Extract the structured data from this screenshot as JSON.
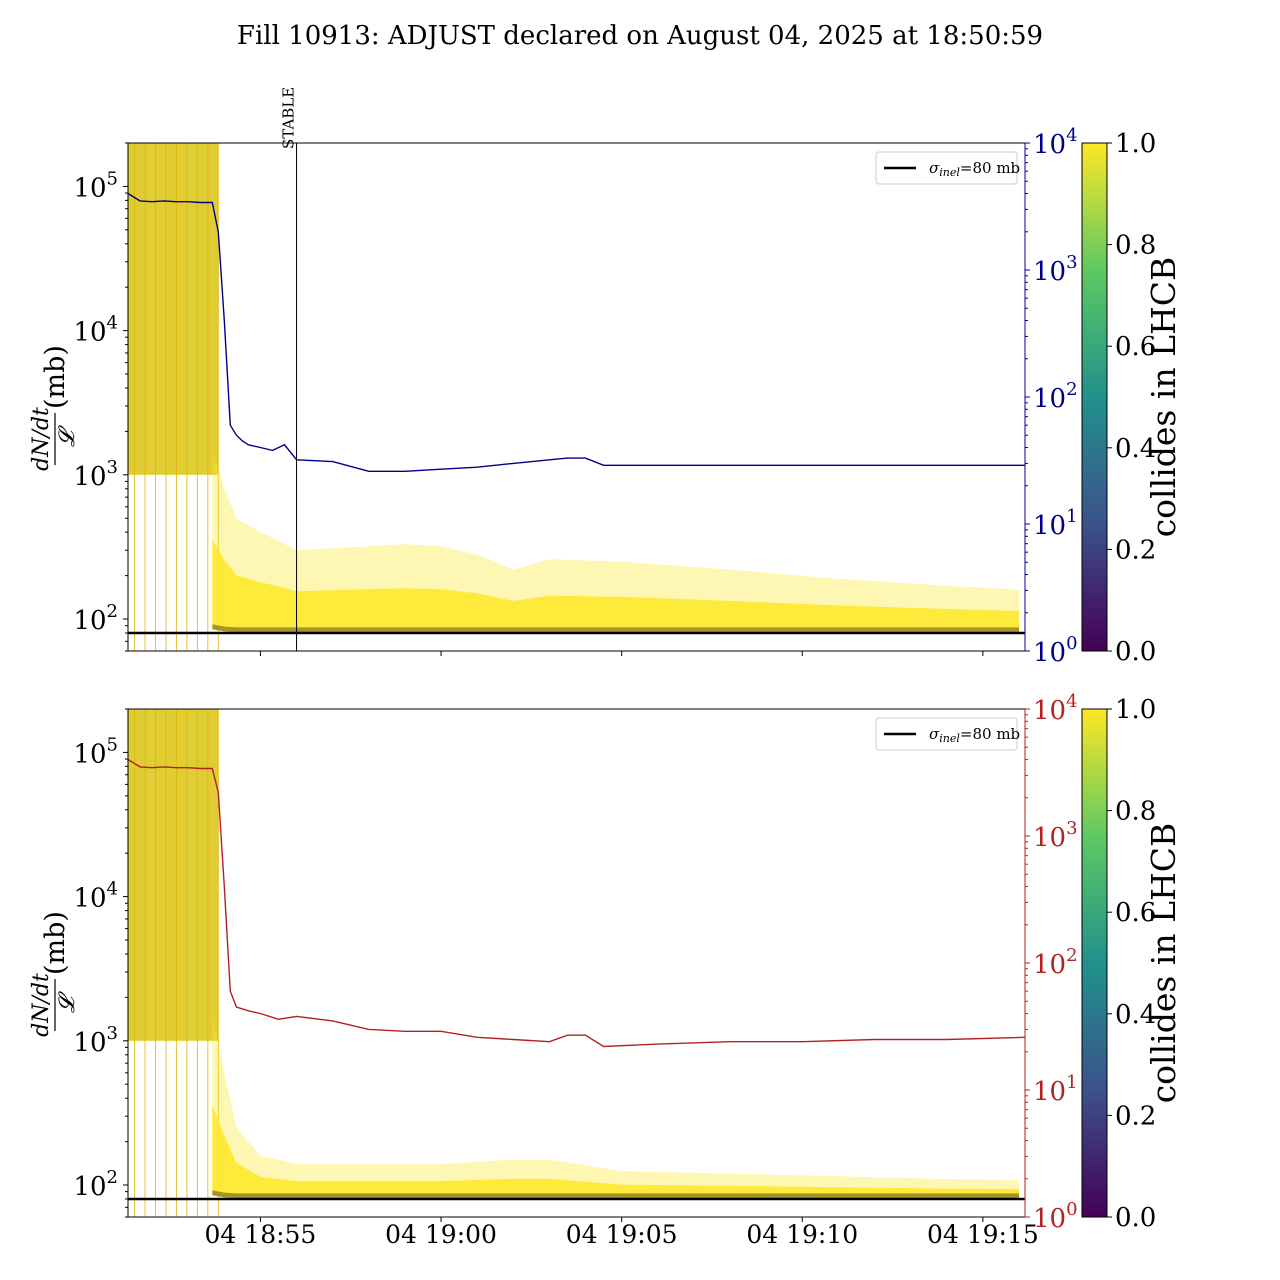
{
  "title": "Fill 10913: ADJUST declared on August 04, 2025 at 18:50:59",
  "colors": {
    "left_axis_text": "#000000",
    "top_right_axis": "#00008b",
    "bottom_right_axis": "#b22222",
    "reference_line": "#000000",
    "cmap": [
      "#440154",
      "#3b528b",
      "#21918c",
      "#5ec962",
      "#fde725"
    ]
  },
  "chart_data": [
    {
      "type": "line",
      "panel": "top",
      "ylabel_left": "dN/dt / 𝓛 (mb)",
      "ylabel_left_num": "dN/dt",
      "ylabel_left_den": "𝓛",
      "ylabel_left_unit": "(mb)",
      "yscale_left": "log",
      "ylim_left": [
        60,
        200000
      ],
      "yticks_left": [
        {
          "value": 100,
          "base": "10",
          "exp": "2"
        },
        {
          "value": 1000,
          "base": "10",
          "exp": "3"
        },
        {
          "value": 10000,
          "base": "10",
          "exp": "4"
        },
        {
          "value": 100000,
          "base": "10",
          "exp": "5"
        }
      ],
      "yscale_right": "log",
      "ylim_right": [
        1,
        10000
      ],
      "yticks_right": [
        {
          "value": 1,
          "base": "10",
          "exp": "0"
        },
        {
          "value": 10,
          "base": "10",
          "exp": "1"
        },
        {
          "value": 100,
          "base": "10",
          "exp": "2"
        },
        {
          "value": 1000,
          "base": "10",
          "exp": "3"
        },
        {
          "value": 10000,
          "base": "10",
          "exp": "4"
        }
      ],
      "xlim": [
        "2025-08-04 18:51:20",
        "2025-08-04 19:16:10"
      ],
      "xticks": [
        "2025-08-04 18:55:00",
        "2025-08-04 19:00:00",
        "2025-08-04 19:05:00",
        "2025-08-04 19:10:00",
        "2025-08-04 19:15:00"
      ],
      "xtick_labels_visible": false,
      "legend": {
        "label": "σinel=80 mb",
        "sigma": "σ",
        "sub": "inel",
        "rest": "=80 mb",
        "placement": "top-right"
      },
      "reference_line": {
        "value": 80
      },
      "annotation": {
        "label": "STABLE",
        "time": "2025-08-04 18:56:00"
      },
      "right_series": {
        "name": "",
        "color": "#00008b",
        "x": [
          "2025-08-04 18:51:20",
          "2025-08-04 18:51:40",
          "2025-08-04 18:52:00",
          "2025-08-04 18:52:20",
          "2025-08-04 18:52:40",
          "2025-08-04 18:53:00",
          "2025-08-04 18:53:20",
          "2025-08-04 18:53:40",
          "2025-08-04 18:53:50",
          "2025-08-04 18:54:00",
          "2025-08-04 18:54:10",
          "2025-08-04 18:54:20",
          "2025-08-04 18:54:30",
          "2025-08-04 18:54:40",
          "2025-08-04 18:55:00",
          "2025-08-04 18:55:20",
          "2025-08-04 18:55:40",
          "2025-08-04 18:56:00",
          "2025-08-04 18:57:00",
          "2025-08-04 18:58:00",
          "2025-08-04 18:59:00",
          "2025-08-04 19:00:00",
          "2025-08-04 19:01:00",
          "2025-08-04 19:02:00",
          "2025-08-04 19:03:00",
          "2025-08-04 19:03:30",
          "2025-08-04 19:04:00",
          "2025-08-04 19:04:30",
          "2025-08-04 19:05:00",
          "2025-08-04 19:07:00",
          "2025-08-04 19:09:00",
          "2025-08-04 19:11:00",
          "2025-08-04 19:13:00",
          "2025-08-04 19:15:00",
          "2025-08-04 19:16:10"
        ],
        "values": [
          4000,
          3500,
          3450,
          3500,
          3450,
          3450,
          3400,
          3400,
          2000,
          400,
          60,
          50,
          45,
          42,
          40,
          38,
          42,
          32,
          31,
          26,
          26,
          27,
          28,
          30,
          32,
          33,
          33,
          29,
          29,
          29,
          29,
          29,
          29,
          29,
          29
        ]
      },
      "density": {
        "colorbar_value_dense": 1.0,
        "colorbar_value_dark": 0.15,
        "x": [
          "2025-08-04 18:53:40",
          "2025-08-04 18:54:00",
          "2025-08-04 18:54:20",
          "2025-08-04 18:55:00",
          "2025-08-04 18:55:30",
          "2025-08-04 18:56:00",
          "2025-08-04 18:58:00",
          "2025-08-04 18:59:00",
          "2025-08-04 19:00:00",
          "2025-08-04 19:01:00",
          "2025-08-04 19:02:00",
          "2025-08-04 19:03:00",
          "2025-08-04 19:05:00",
          "2025-08-04 19:08:00",
          "2025-08-04 19:11:00",
          "2025-08-04 19:14:00",
          "2025-08-04 19:16:00"
        ],
        "upper": [
          1500,
          800,
          500,
          400,
          350,
          300,
          320,
          330,
          320,
          280,
          220,
          260,
          250,
          220,
          190,
          170,
          160
        ],
        "lower": [
          85,
          82,
          81,
          81,
          81,
          81,
          81,
          81,
          81,
          81,
          81,
          81,
          81,
          81,
          81,
          81,
          81
        ]
      },
      "spike_region": {
        "x": [
          "2025-08-04 18:52:00",
          "2025-08-04 18:53:50"
        ],
        "low": 1000,
        "high": 200000
      }
    },
    {
      "type": "line",
      "panel": "bottom",
      "ylabel_left": "dN/dt / 𝓛 (mb)",
      "ylabel_left_num": "dN/dt",
      "ylabel_left_den": "𝓛",
      "ylabel_left_unit": "(mb)",
      "yscale_left": "log",
      "ylim_left": [
        60,
        200000
      ],
      "yticks_left": [
        {
          "value": 100,
          "base": "10",
          "exp": "2"
        },
        {
          "value": 1000,
          "base": "10",
          "exp": "3"
        },
        {
          "value": 10000,
          "base": "10",
          "exp": "4"
        },
        {
          "value": 100000,
          "base": "10",
          "exp": "5"
        }
      ],
      "yscale_right": "log",
      "ylim_right": [
        1,
        10000
      ],
      "yticks_right": [
        {
          "value": 1,
          "base": "10",
          "exp": "0"
        },
        {
          "value": 10,
          "base": "10",
          "exp": "1"
        },
        {
          "value": 100,
          "base": "10",
          "exp": "2"
        },
        {
          "value": 1000,
          "base": "10",
          "exp": "3"
        },
        {
          "value": 10000,
          "base": "10",
          "exp": "4"
        }
      ],
      "xlim": [
        "2025-08-04 18:51:20",
        "2025-08-04 19:16:10"
      ],
      "xticks": [
        "2025-08-04 18:55:00",
        "2025-08-04 19:00:00",
        "2025-08-04 19:05:00",
        "2025-08-04 19:10:00",
        "2025-08-04 19:15:00"
      ],
      "xtick_labels": [
        "04 18:55",
        "04 19:00",
        "04 19:05",
        "04 19:10",
        "04 19:15"
      ],
      "xtick_labels_visible": true,
      "legend": {
        "label": "σinel=80 mb",
        "sigma": "σ",
        "sub": "inel",
        "rest": "=80 mb",
        "placement": "top-right"
      },
      "reference_line": {
        "value": 80
      },
      "right_series": {
        "name": "",
        "color": "#b22222",
        "x": [
          "2025-08-04 18:51:20",
          "2025-08-04 18:51:40",
          "2025-08-04 18:52:00",
          "2025-08-04 18:52:20",
          "2025-08-04 18:52:40",
          "2025-08-04 18:53:00",
          "2025-08-04 18:53:20",
          "2025-08-04 18:53:40",
          "2025-08-04 18:53:50",
          "2025-08-04 18:54:00",
          "2025-08-04 18:54:10",
          "2025-08-04 18:54:20",
          "2025-08-04 18:54:40",
          "2025-08-04 18:55:00",
          "2025-08-04 18:55:30",
          "2025-08-04 18:56:00",
          "2025-08-04 18:57:00",
          "2025-08-04 18:58:00",
          "2025-08-04 18:59:00",
          "2025-08-04 19:00:00",
          "2025-08-04 19:01:00",
          "2025-08-04 19:02:00",
          "2025-08-04 19:03:00",
          "2025-08-04 19:03:30",
          "2025-08-04 19:04:00",
          "2025-08-04 19:04:30",
          "2025-08-04 19:06:00",
          "2025-08-04 19:08:00",
          "2025-08-04 19:10:00",
          "2025-08-04 19:12:00",
          "2025-08-04 19:14:00",
          "2025-08-04 19:16:10"
        ],
        "values": [
          4000,
          3500,
          3450,
          3500,
          3450,
          3450,
          3400,
          3400,
          2200,
          400,
          60,
          45,
          42,
          40,
          36,
          38,
          35,
          30,
          29,
          29,
          26,
          25,
          24,
          27,
          27,
          22,
          23,
          24,
          24,
          25,
          25,
          26
        ]
      },
      "density": {
        "colorbar_value_dense": 1.0,
        "colorbar_value_dark": 0.15,
        "x": [
          "2025-08-04 18:53:40",
          "2025-08-04 18:54:00",
          "2025-08-04 18:54:20",
          "2025-08-04 18:55:00",
          "2025-08-04 18:55:30",
          "2025-08-04 18:56:00",
          "2025-08-04 18:58:00",
          "2025-08-04 19:00:00",
          "2025-08-04 19:02:00",
          "2025-08-04 19:03:00",
          "2025-08-04 19:05:00",
          "2025-08-04 19:08:00",
          "2025-08-04 19:11:00",
          "2025-08-04 19:14:00",
          "2025-08-04 19:16:00"
        ],
        "upper": [
          1500,
          600,
          250,
          160,
          150,
          140,
          140,
          140,
          150,
          150,
          125,
          120,
          115,
          110,
          108
        ],
        "lower": [
          85,
          82,
          81,
          81,
          81,
          81,
          81,
          81,
          81,
          81,
          81,
          81,
          81,
          81,
          81
        ]
      },
      "spike_region": {
        "x": [
          "2025-08-04 18:52:00",
          "2025-08-04 18:53:50"
        ],
        "low": 1000,
        "high": 200000
      }
    }
  ],
  "colorbars": [
    {
      "label": "collides in LHCB",
      "range": [
        0.0,
        1.0
      ],
      "ticks": [
        "0.0",
        "0.2",
        "0.4",
        "0.6",
        "0.8",
        "1.0"
      ]
    },
    {
      "label": "collides in LHCB",
      "range": [
        0.0,
        1.0
      ],
      "ticks": [
        "0.0",
        "0.2",
        "0.4",
        "0.6",
        "0.8",
        "1.0"
      ]
    }
  ]
}
